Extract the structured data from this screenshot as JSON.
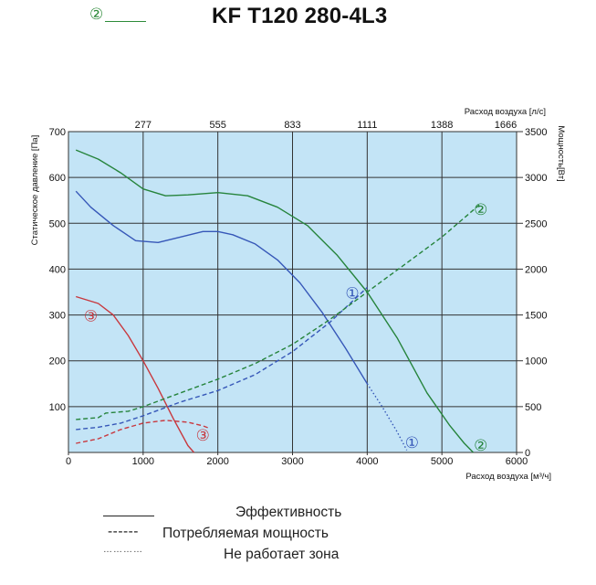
{
  "header": {
    "title": "KF T120 280-4L3",
    "curve_marker": "②"
  },
  "chart_data": {
    "type": "line",
    "title": "KF T120 280-4L3",
    "xlabel": "Расход воздуха [м³/ч]",
    "x2label": "Расход воздуха [л/с]",
    "ylabel": "Статическое давление [Па]",
    "y2label": "Мощность[Вт]",
    "xlim": [
      0,
      6000
    ],
    "ylim": [
      0,
      700
    ],
    "y2lim": [
      0,
      3500
    ],
    "x_ticks": [
      0,
      1000,
      2000,
      3000,
      4000,
      5000,
      6000
    ],
    "x2_ticks": [
      "277",
      "555",
      "833",
      "1111",
      "1388",
      "1666"
    ],
    "y_ticks": [
      100,
      200,
      300,
      400,
      500,
      600,
      700
    ],
    "y2_ticks": [
      0,
      500,
      1000,
      1500,
      2000,
      2500,
      3000,
      3500
    ],
    "grid": true,
    "background": "#c3e4f6",
    "colors": {
      "curve1": "#3657b8",
      "curve2": "#26843c",
      "curve3": "#c8383e"
    },
    "series": [
      {
        "id": "1",
        "kind": "pressure",
        "color": "#3657b8",
        "x": [
          100,
          300,
          600,
          900,
          1200,
          1500,
          1800,
          2000,
          2200,
          2500,
          2800,
          3100,
          3400,
          3700,
          4000
        ],
        "y": [
          570,
          535,
          495,
          462,
          458,
          470,
          482,
          482,
          475,
          455,
          420,
          370,
          305,
          230,
          150
        ]
      },
      {
        "id": "1",
        "kind": "pressure-inoperative",
        "color": "#3657b8",
        "x": [
          4000,
          4200,
          4400,
          4530
        ],
        "y": [
          150,
          100,
          45,
          5
        ]
      },
      {
        "id": "2",
        "kind": "pressure",
        "color": "#26843c",
        "x": [
          100,
          400,
          700,
          1000,
          1300,
          1600,
          2000,
          2400,
          2800,
          3200,
          3600,
          4000,
          4400,
          4800,
          5100,
          5300,
          5420
        ],
        "y": [
          660,
          640,
          610,
          575,
          560,
          562,
          567,
          560,
          535,
          495,
          430,
          350,
          250,
          130,
          60,
          20,
          0
        ]
      },
      {
        "id": "3",
        "kind": "pressure",
        "color": "#c8383e",
        "x": [
          100,
          400,
          600,
          800,
          1000,
          1200,
          1400,
          1600,
          1680
        ],
        "y": [
          340,
          325,
          300,
          255,
          200,
          140,
          75,
          15,
          0
        ]
      },
      {
        "id": "1",
        "kind": "power",
        "color": "#3657b8",
        "x": [
          100,
          400,
          700,
          1000,
          1500,
          2000,
          2500,
          3000,
          3500,
          4000
        ],
        "y": [
          250,
          275,
          320,
          400,
          550,
          675,
          850,
          1100,
          1420,
          1800
        ]
      },
      {
        "id": "2",
        "kind": "power",
        "color": "#26843c",
        "x": [
          100,
          400,
          500,
          800,
          1000,
          1500,
          2000,
          2500,
          3000,
          3500,
          4000,
          4500,
          5000,
          5500
        ],
        "y": [
          360,
          380,
          430,
          450,
          500,
          650,
          800,
          970,
          1180,
          1450,
          1750,
          2050,
          2350,
          2700
        ]
      },
      {
        "id": "3",
        "kind": "power",
        "color": "#c8383e",
        "x": [
          100,
          400,
          700,
          1000,
          1300,
          1600,
          1800,
          1900
        ],
        "y": [
          100,
          150,
          250,
          320,
          350,
          330,
          290,
          260
        ]
      }
    ],
    "labels": [
      {
        "text": "①",
        "x": 3800,
        "y": 348,
        "color": "#3657b8"
      },
      {
        "text": "①",
        "x": 4600,
        "y": 22,
        "color": "#3657b8"
      },
      {
        "text": "②",
        "x": 5520,
        "y": 530,
        "color": "#26843c"
      },
      {
        "text": "②",
        "x": 5520,
        "y": 16,
        "color": "#26843c"
      },
      {
        "text": "③",
        "x": 300,
        "y": 298,
        "color": "#c8383e"
      },
      {
        "text": "③",
        "x": 1800,
        "y": 38,
        "color": "#c8383e"
      }
    ]
  },
  "legend": [
    {
      "style": "solid",
      "line_text": "",
      "label": "Эффективность"
    },
    {
      "style": "dashed",
      "line_text": "------",
      "label": "Потребляемая мощность"
    },
    {
      "style": "dotted",
      "line_text": "…………",
      "label": "Не работает зона"
    }
  ]
}
